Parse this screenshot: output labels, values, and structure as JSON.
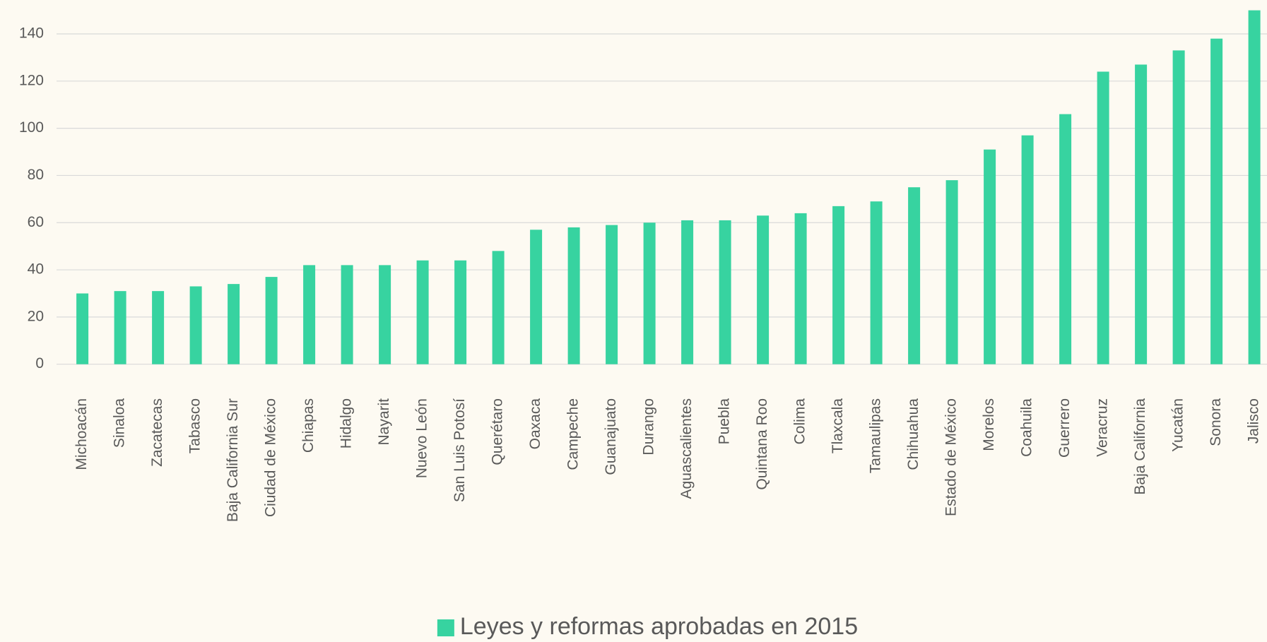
{
  "chart_data": {
    "type": "bar",
    "categories": [
      "Michoacán",
      "Sinaloa",
      "Zacatecas",
      "Tabasco",
      "Baja California Sur",
      "Ciudad de México",
      "Chiapas",
      "Hidalgo",
      "Nayarit",
      "Nuevo León",
      "San Luis Potosí",
      "Querétaro",
      "Oaxaca",
      "Campeche",
      "Guanajuato",
      "Durango",
      "Aguascalientes",
      "Puebla",
      "Quintana Roo",
      "Colima",
      "Tlaxcala",
      "Tamaulipas",
      "Chihuahua",
      "Estado de México",
      "Morelos",
      "Coahuila",
      "Guerrero",
      "Veracruz",
      "Baja California",
      "Yucatán",
      "Sonora",
      "Jalisco"
    ],
    "series": [
      {
        "name": "Leyes y reformas aprobadas en 2015",
        "color": "#37d3a0",
        "values": [
          30,
          31,
          31,
          33,
          34,
          37,
          42,
          42,
          42,
          44,
          44,
          48,
          57,
          58,
          59,
          60,
          61,
          61,
          63,
          64,
          67,
          69,
          75,
          78,
          91,
          97,
          106,
          124,
          127,
          133,
          138,
          150
        ]
      }
    ],
    "ylim": [
      0,
      150
    ],
    "yticks": [
      0,
      20,
      40,
      60,
      80,
      100,
      120,
      140
    ],
    "grid": true,
    "legend": "bottom"
  }
}
